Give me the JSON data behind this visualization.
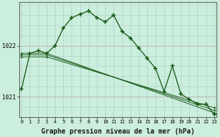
{
  "background_color": "#cceedd",
  "grid_color": "#aacccc",
  "line_color": "#1a5c1a",
  "xlabel": "Graphe pression niveau de la mer (hPa)",
  "xlabel_fontsize": 7,
  "yticks": [
    1021,
    1022
  ],
  "xticks": [
    0,
    1,
    2,
    3,
    4,
    5,
    6,
    7,
    8,
    9,
    10,
    11,
    12,
    13,
    14,
    15,
    16,
    17,
    18,
    19,
    20,
    21,
    22,
    23
  ],
  "ylim": [
    1020.6,
    1022.85
  ],
  "xlim": [
    -0.3,
    23.3
  ],
  "series_main": {
    "x": [
      0,
      1,
      2,
      3,
      4,
      5,
      6,
      7,
      8,
      9,
      10,
      11,
      12,
      13,
      14,
      15,
      16,
      17,
      18,
      19,
      20,
      21,
      22,
      23
    ],
    "y": [
      1021.15,
      1021.85,
      1021.9,
      1021.85,
      1022.0,
      1022.35,
      1022.55,
      1022.62,
      1022.68,
      1022.55,
      1022.47,
      1022.6,
      1022.28,
      1022.15,
      1021.95,
      1021.75,
      1021.55,
      1021.1,
      1021.6,
      1021.05,
      1020.95,
      1020.85,
      1020.85,
      1020.65
    ]
  },
  "series_linear": [
    {
      "x": [
        0,
        3,
        23
      ],
      "y": [
        1021.85,
        1021.85,
        1020.68
      ]
    },
    {
      "x": [
        0,
        3,
        23
      ],
      "y": [
        1021.82,
        1021.82,
        1020.73
      ]
    },
    {
      "x": [
        0,
        3,
        23
      ],
      "y": [
        1021.78,
        1021.78,
        1020.78
      ]
    }
  ]
}
